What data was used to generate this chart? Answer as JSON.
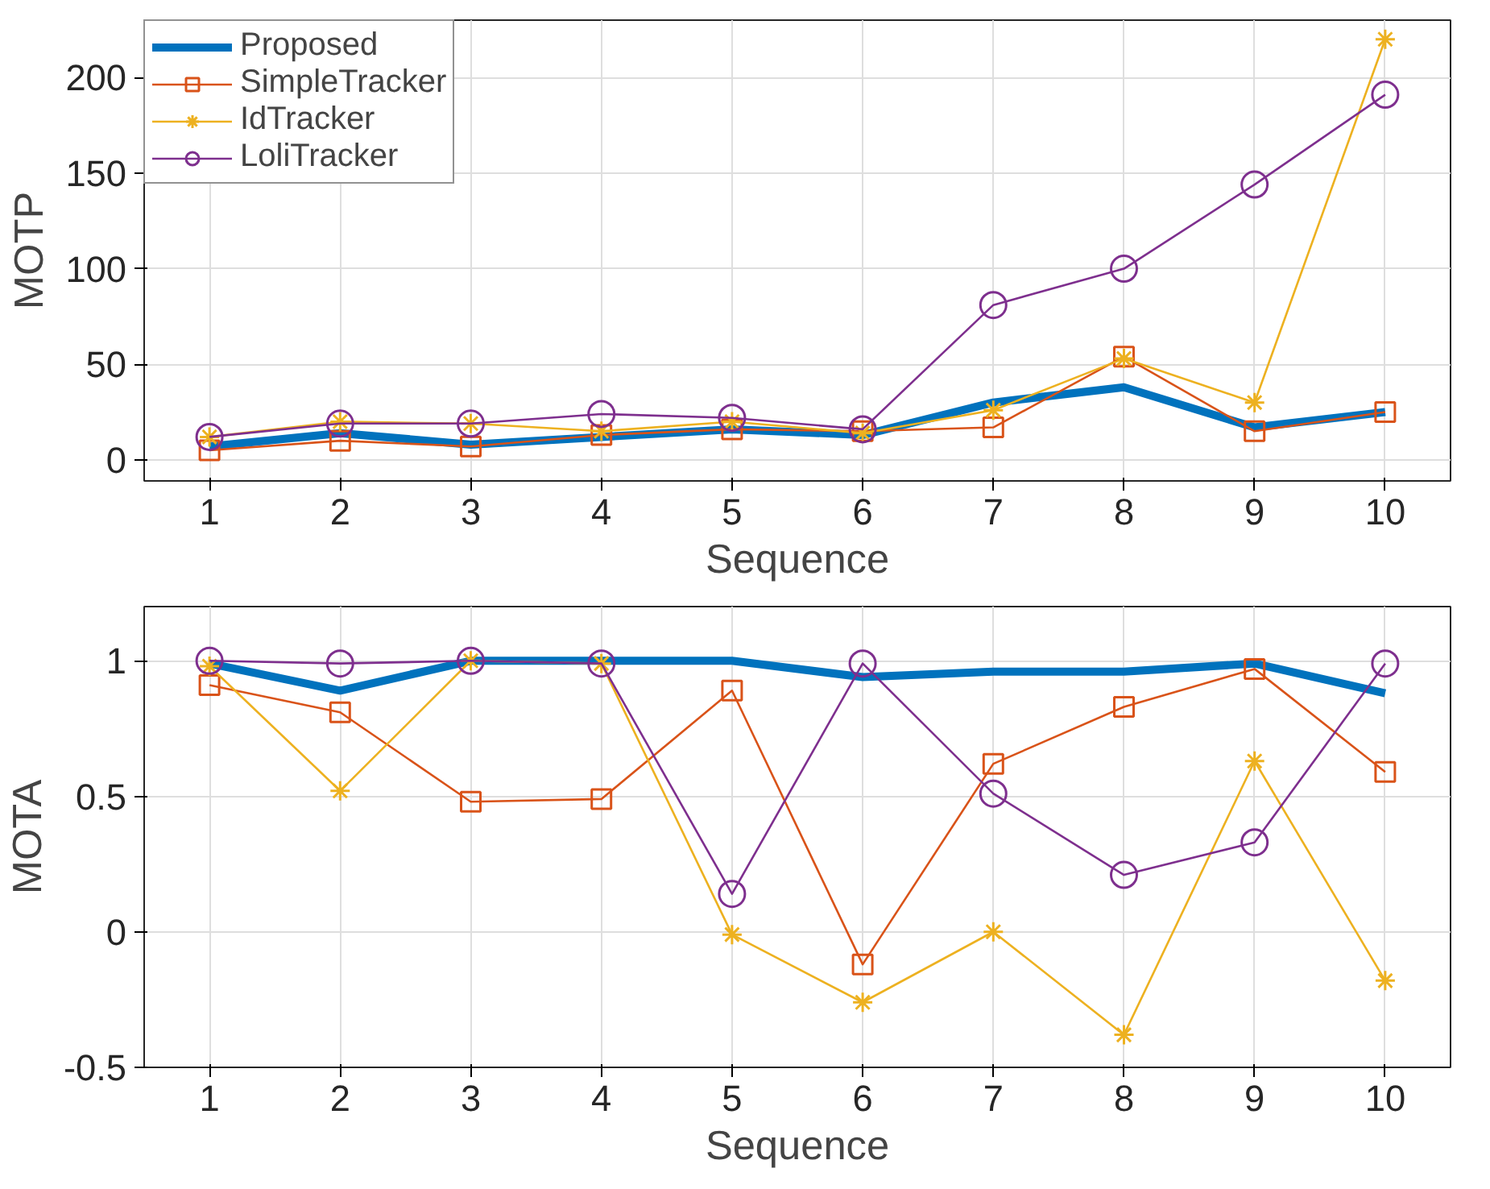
{
  "chart_data": [
    {
      "type": "line",
      "xlabel": "Sequence",
      "ylabel": "MOTP",
      "x": [
        1,
        2,
        3,
        4,
        5,
        6,
        7,
        8,
        9,
        10
      ],
      "xlim": [
        0.5,
        10.5
      ],
      "xticks": [
        1,
        2,
        3,
        4,
        5,
        6,
        7,
        8,
        9,
        10
      ],
      "ylim": [
        -11,
        230
      ],
      "yticks": [
        0,
        50,
        100,
        150,
        200
      ],
      "grid": true,
      "legend": "top left",
      "series": [
        {
          "name": "Proposed",
          "color": "#0072bd",
          "marker": "none",
          "values": [
            7,
            14,
            8,
            12,
            16,
            13,
            30,
            38,
            17,
            25
          ]
        },
        {
          "name": "SimpleTracker",
          "color": "#d95319",
          "marker": "square",
          "values": [
            5,
            10,
            7,
            13,
            16,
            15,
            17,
            54,
            15,
            25
          ]
        },
        {
          "name": "IdTracker",
          "color": "#edb120",
          "marker": "cross",
          "values": [
            12,
            20,
            19,
            15,
            20,
            14,
            26,
            53,
            30,
            220
          ]
        },
        {
          "name": "LoliTracker",
          "color": "#7e2f8e",
          "marker": "circle",
          "values": [
            12,
            19,
            19,
            24,
            22,
            16,
            81,
            100,
            144,
            191
          ]
        }
      ]
    },
    {
      "type": "line",
      "xlabel": "Sequence",
      "ylabel": "MOTA",
      "x": [
        1,
        2,
        3,
        4,
        5,
        6,
        7,
        8,
        9,
        10
      ],
      "xlim": [
        0.5,
        10.5
      ],
      "xticks": [
        1,
        2,
        3,
        4,
        5,
        6,
        7,
        8,
        9,
        10
      ],
      "ylim": [
        -0.5,
        1.2
      ],
      "yticks": [
        {
          "value": -0.5,
          "label": "-0.5"
        },
        0,
        0.5,
        1
      ],
      "grid": true,
      "series": [
        {
          "color": "#0072bd",
          "marker": "none",
          "values": [
            0.99,
            0.89,
            1.0,
            1.0,
            1.0,
            0.94,
            0.96,
            0.96,
            0.99,
            0.88
          ]
        },
        {
          "color": "#d95319",
          "marker": "square",
          "values": [
            0.91,
            0.81,
            0.48,
            0.49,
            0.89,
            -0.12,
            0.62,
            0.83,
            0.97,
            0.59
          ]
        },
        {
          "color": "#edb120",
          "marker": "cross",
          "values": [
            0.98,
            0.52,
            1.0,
            0.99,
            -0.01,
            -0.26,
            0.0,
            -0.38,
            0.63,
            -0.18
          ]
        },
        {
          "color": "#7e2f8e",
          "marker": "circle",
          "values": [
            1.0,
            0.99,
            1.0,
            0.99,
            0.14,
            0.99,
            0.51,
            0.21,
            0.33,
            0.99
          ]
        }
      ]
    }
  ]
}
